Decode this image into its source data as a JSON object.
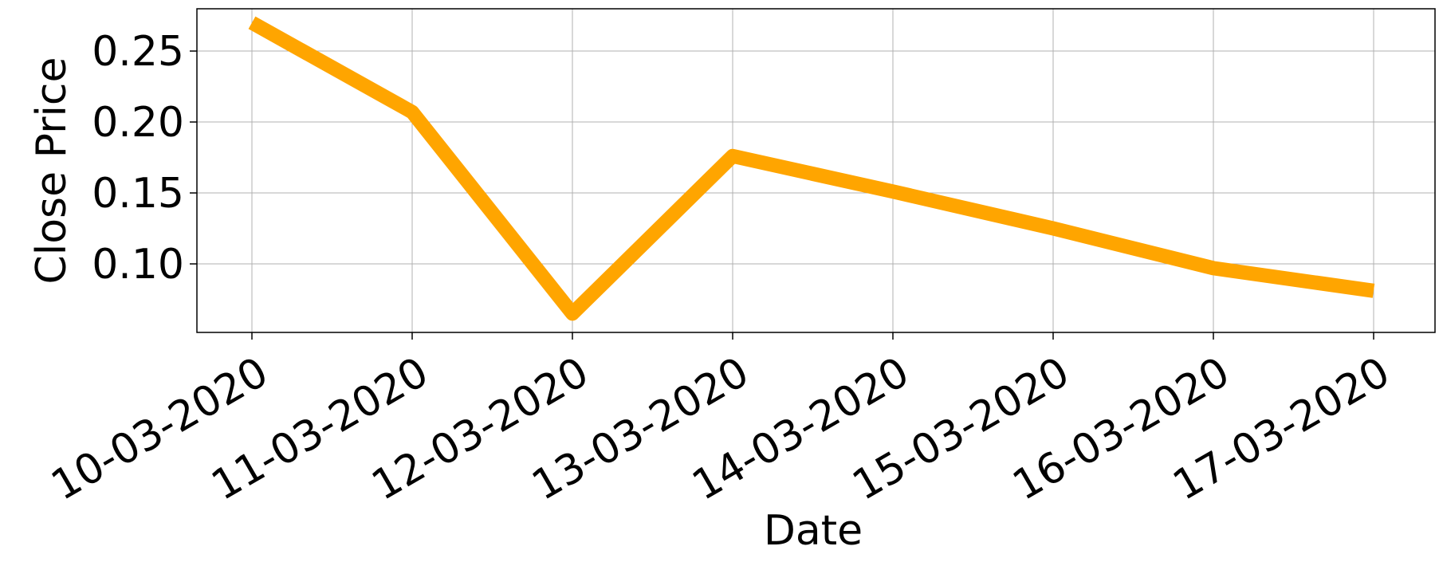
{
  "chart_data": {
    "type": "line",
    "title": "",
    "xlabel": "Date",
    "ylabel": "Close Price",
    "x": [
      "10-03-2020",
      "11-03-2020",
      "12-03-2020",
      "13-03-2020",
      "14-03-2020",
      "15-03-2020",
      "16-03-2020",
      "17-03-2020"
    ],
    "series": [
      {
        "values": [
          0.27,
          0.207,
          0.065,
          0.176,
          0.151,
          0.125,
          0.097,
          0.081
        ],
        "color": "#FFA500"
      }
    ],
    "yticks": [
      "0.10",
      "0.15",
      "0.20",
      "0.25"
    ],
    "ylim": [
      0.0517,
      0.2798
    ],
    "grid": true
  }
}
